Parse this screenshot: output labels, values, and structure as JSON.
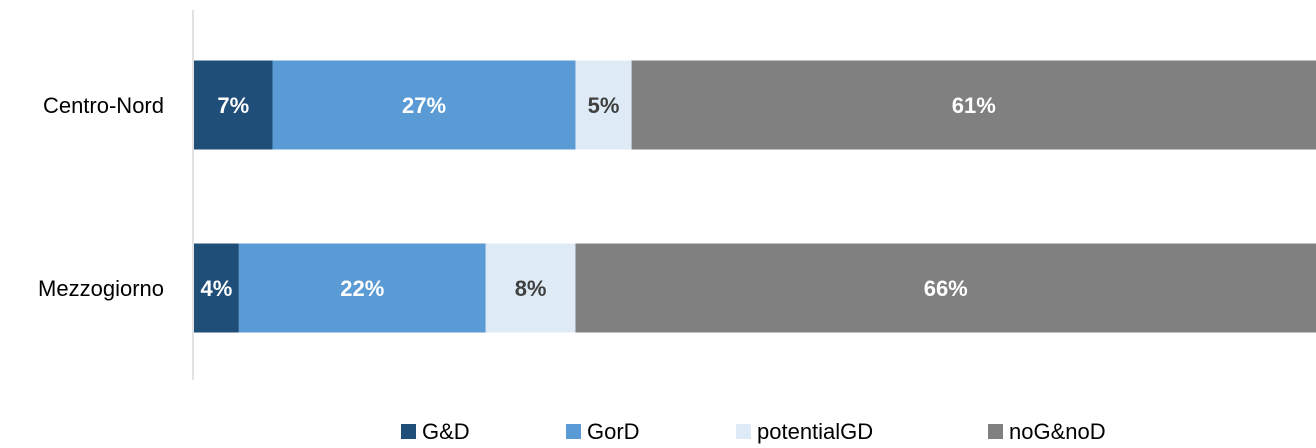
{
  "chart_data": {
    "type": "bar",
    "orientation": "horizontal",
    "stacked": true,
    "normalized_percent": true,
    "categories": [
      "Centro-Nord",
      "Mezzogiorno"
    ],
    "series": [
      {
        "name": "G&D",
        "values": [
          7,
          4
        ],
        "labels": [
          "7%",
          "4%"
        ],
        "color": "#1f4e79",
        "label_color": "#ffffff"
      },
      {
        "name": "GorD",
        "values": [
          27,
          22
        ],
        "labels": [
          "27%",
          "22%"
        ],
        "color": "#5b9bd5",
        "label_color": "#ffffff"
      },
      {
        "name": "potentialGD",
        "values": [
          5,
          8
        ],
        "labels": [
          "5%",
          "8%"
        ],
        "color": "#deebf7",
        "label_color": "#404040"
      },
      {
        "name": "noG&noD",
        "values": [
          61,
          66
        ],
        "labels": [
          "61%",
          "66%"
        ],
        "color": "#808080",
        "label_color": "#ffffff"
      }
    ],
    "title": "",
    "xlabel": "",
    "ylabel": "",
    "xlim": [
      0,
      100
    ],
    "grid": false,
    "legend_position": "bottom"
  }
}
